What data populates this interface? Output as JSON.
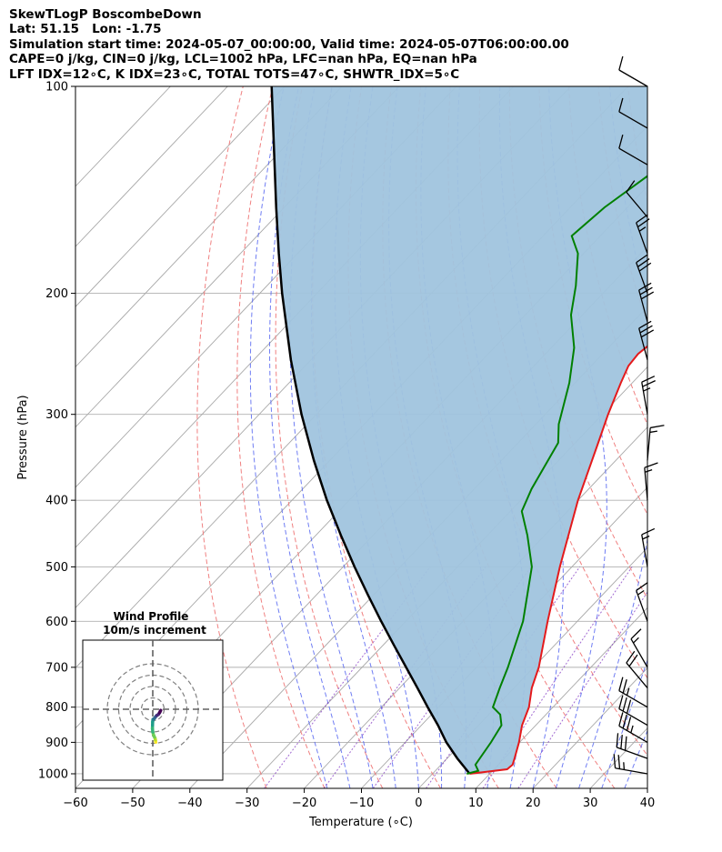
{
  "header": {
    "line1": "SkewTLogP BoscombeDown",
    "line2": "Lat: 51.15   Lon: -1.75",
    "line3": "Simulation start time: 2024-05-07_00:00:00, Valid time: 2024-05-07T06:00:00.00",
    "line4": "CAPE=0 j/kg, CIN=0 j/kg, LCL=1002 hPa, LFC=nan hPa, EQ=nan hPa",
    "line5": "LFT IDX=12∘C, K IDX=23∘C, TOTAL TOTS=47∘C, SHWTR_IDX=5∘C"
  },
  "chart_data": {
    "type": "line",
    "title": "SkewTLogP BoscombeDown",
    "xlabel": "Temperature (∘C)",
    "ylabel": "Pressure (hPa)",
    "xlim": [
      -60,
      40
    ],
    "ylim": [
      1050,
      100
    ],
    "y_scale": "log",
    "x_ticks": [
      -60,
      -50,
      -40,
      -30,
      -20,
      -10,
      0,
      10,
      20,
      30,
      40
    ],
    "x_tick_labels": [
      "−60",
      "−50",
      "−40",
      "−30",
      "−20",
      "−10",
      "0",
      "10",
      "20",
      "30",
      "40"
    ],
    "y_ticks": [
      1000,
      900,
      800,
      700,
      600,
      500,
      400,
      300,
      200,
      100
    ],
    "y_tick_labels": [
      "1000",
      "900",
      "800",
      "700",
      "600",
      "500",
      "400",
      "300",
      "200",
      "100"
    ],
    "grid": true,
    "series": [
      {
        "role": "temperature",
        "color": "#e41a1c",
        "p": [
          1000,
          985,
          970,
          950,
          900,
          850,
          800,
          750,
          700,
          600,
          500,
          400,
          330,
          300,
          270,
          255,
          245,
          235,
          215,
          200,
          170,
          145,
          130,
          115,
          105,
          100
        ],
        "values": [
          6.5,
          12.3,
          12.5,
          11.8,
          9.9,
          7.6,
          5.8,
          3.1,
          0.9,
          -5.2,
          -12.1,
          -20.0,
          -26.0,
          -29.0,
          -32.0,
          -33.5,
          -33.8,
          -33.2,
          -32.5,
          -33.0,
          -38.5,
          -45.0,
          -52.0,
          -56.0,
          -58.0,
          -58.5
        ]
      },
      {
        "role": "dewpoint",
        "color": "#008000",
        "p": [
          1000,
          990,
          970,
          900,
          850,
          820,
          800,
          750,
          700,
          600,
          500,
          450,
          415,
          385,
          330,
          310,
          270,
          240,
          215,
          195,
          175,
          165,
          150,
          125,
          100
        ],
        "values": [
          6.0,
          7.5,
          6.0,
          5.0,
          4.0,
          2.0,
          -0.5,
          -2.5,
          -4.5,
          -9.5,
          -17.0,
          -23.0,
          -28.0,
          -30.0,
          -33.0,
          -36.0,
          -41.0,
          -46.0,
          -52.0,
          -56.0,
          -61.0,
          -65.0,
          -64.0,
          -60.0,
          -55.0
        ]
      }
    ],
    "parcel": {
      "role": "parcel profile",
      "color": "#000000",
      "p": [
        1000,
        950,
        900,
        850,
        800,
        750,
        700,
        650,
        600,
        550,
        500,
        450,
        400,
        350,
        300,
        250,
        200,
        175,
        150,
        125,
        100
      ],
      "values": [
        6.5,
        1.8,
        -2.8,
        -7.1,
        -11.9,
        -16.9,
        -22.3,
        -28.1,
        -34.3,
        -40.9,
        -48.0,
        -55.6,
        -63.9,
        -72.8,
        -82.6,
        -93.5,
        -106.1,
        -113.3,
        -121.4,
        -130.8,
        -142.3
      ]
    },
    "shading": {
      "between": "temperature and parcel profile",
      "color": "#a0c4de"
    },
    "dry_adiabats_theta_c": [
      -30,
      -20,
      -10,
      0,
      10,
      20,
      30,
      40,
      50,
      60,
      70,
      80,
      90,
      100,
      110,
      120
    ],
    "moist_adiabats_start_t_c": [
      -16,
      -12,
      -8,
      -4,
      0,
      4,
      8,
      12,
      16,
      20,
      24,
      28,
      32,
      36,
      40
    ],
    "mixing_ratio_gkg": [
      0.4,
      1,
      2,
      4,
      8,
      12
    ],
    "wind_barbs": {
      "side": "right",
      "p": [
        1000,
        950,
        900,
        850,
        800,
        750,
        700,
        600,
        500,
        400,
        350,
        300,
        250,
        220,
        200,
        175,
        155,
        130,
        115,
        100
      ],
      "speed_kt": [
        25,
        30,
        35,
        30,
        25,
        20,
        15,
        15,
        15,
        15,
        15,
        25,
        30,
        30,
        30,
        25,
        10,
        10,
        10,
        10
      ],
      "direction_deg": [
        280,
        290,
        300,
        300,
        300,
        320,
        330,
        340,
        350,
        355,
        5,
        350,
        345,
        345,
        340,
        340,
        320,
        300,
        300,
        300
      ]
    },
    "hodograph": {
      "title_line1": "Wind Profile",
      "title_line2": "10m/s increment",
      "ring_increment_ms": 10,
      "u_ms": [
        2.6,
        2.5,
        2.3,
        2.0,
        1.5,
        0.8,
        0.0,
        -0.3,
        -0.2,
        -0.1,
        0.2,
        0.8,
        1.5,
        2.2,
        3.0,
        3.5,
        4.0,
        5.0,
        6.0,
        6.5,
        7.0
      ],
      "v_ms": [
        -29.0,
        -28.0,
        -27.0,
        -25.5,
        -24.5,
        -23.0,
        -20.0,
        -17.0,
        -14.0,
        -11.0,
        -9.0,
        -8.5,
        -8.0,
        -7.0,
        -6.0,
        -5.5,
        -5.2,
        -4.5,
        -3.0,
        -2.0,
        -1.0
      ]
    }
  }
}
